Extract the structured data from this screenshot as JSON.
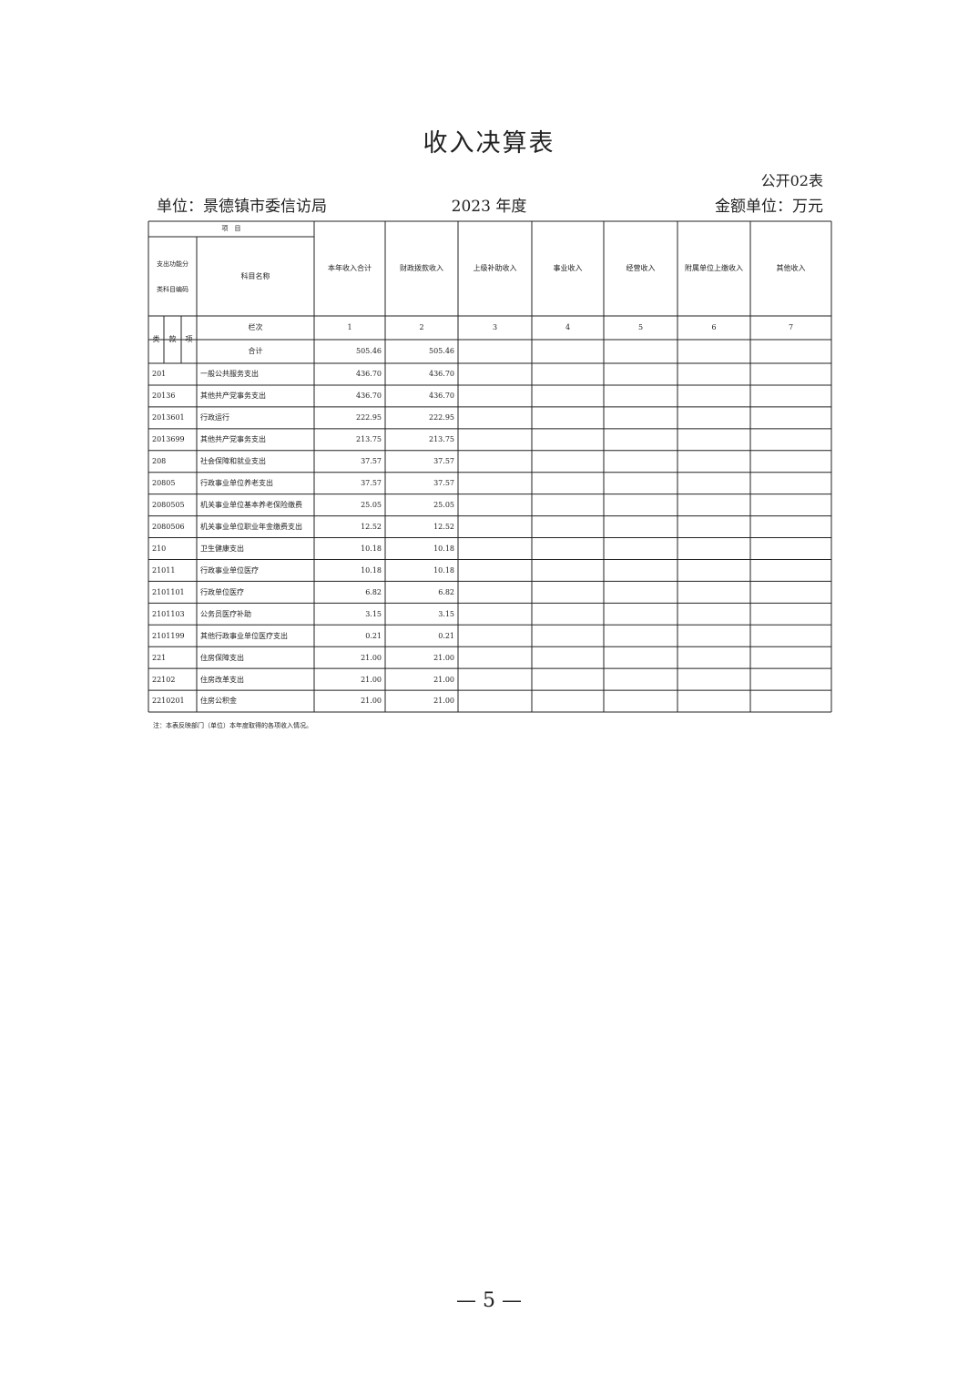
{
  "title": "收入决算表",
  "form_no": "公开02表",
  "unit": "单位：景德镇市委信访局",
  "year": "2023 年度",
  "amount_unit": "金额单位：万元",
  "table": {
    "header_top": "项　目",
    "code_header": "支出功能分类科目编码",
    "name_header": "科目名称",
    "headers": [
      "本年收入合计",
      "财政拨款收入",
      "上级补助收入",
      "事业收入",
      "经营收入",
      "附属单位上缴收入",
      "其他收入"
    ],
    "sub": [
      "类",
      "款",
      "项"
    ],
    "column_numbers_label": "栏次",
    "column_numbers": [
      "1",
      "2",
      "3",
      "4",
      "5",
      "6",
      "7"
    ],
    "total_label": "合计",
    "total": [
      "505.46",
      "505.46"
    ],
    "rows": [
      [
        "201",
        "一般公共服务支出",
        "436.70",
        "436.70"
      ],
      [
        "20136",
        "其他共产党事务支出",
        "436.70",
        "436.70"
      ],
      [
        "2013601",
        "行政运行",
        "222.95",
        "222.95"
      ],
      [
        "2013699",
        "其他共产党事务支出",
        "213.75",
        "213.75"
      ],
      [
        "208",
        "社会保障和就业支出",
        "37.57",
        "37.57"
      ],
      [
        "20805",
        "行政事业单位养老支出",
        "37.57",
        "37.57"
      ],
      [
        "2080505",
        "机关事业单位基本养老保险缴费",
        "25.05",
        "25.05"
      ],
      [
        "2080506",
        "机关事业单位职业年金缴费支出",
        "12.52",
        "12.52"
      ],
      [
        "210",
        "卫生健康支出",
        "10.18",
        "10.18"
      ],
      [
        "21011",
        "行政事业单位医疗",
        "10.18",
        "10.18"
      ],
      [
        "2101101",
        "行政单位医疗",
        "6.82",
        "6.82"
      ],
      [
        "2101103",
        "公务员医疗补助",
        "3.15",
        "3.15"
      ],
      [
        "2101199",
        "其他行政事业单位医疗支出",
        "0.21",
        "0.21"
      ],
      [
        "221",
        "住房保障支出",
        "21.00",
        "21.00"
      ],
      [
        "22102",
        "住房改革支出",
        "21.00",
        "21.00"
      ],
      [
        "2210201",
        "住房公积金",
        "21.00",
        "21.00"
      ]
    ]
  },
  "note": "注：本表反映部门（单位）本年度取得的各项收入情况。",
  "page_number": "— 5 —"
}
